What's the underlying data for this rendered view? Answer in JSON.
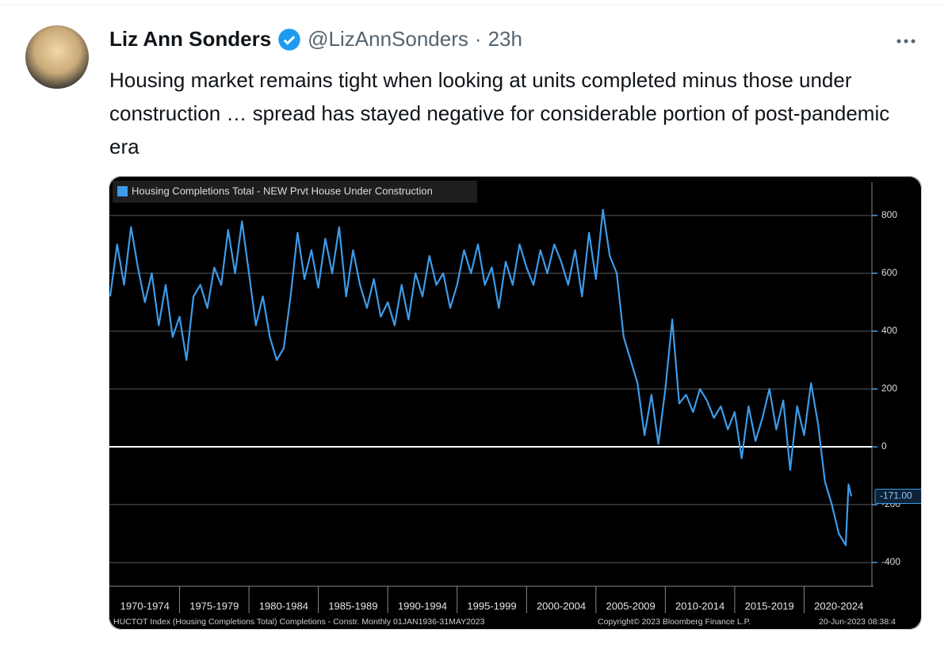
{
  "tweet": {
    "author": "Liz Ann Sonders",
    "handle": "@LizAnnSonders",
    "time": "23h",
    "text": "Housing market remains tight when looking at units completed minus those under construction … spread has stayed negative for considerable portion of post-pandemic era"
  },
  "chart_data": {
    "type": "line",
    "series": [
      {
        "name": "Housing Completions Total - NEW Prvt House Under Construction",
        "color": "#3d9be9",
        "x": [
          1970,
          1970.5,
          1971,
          1971.5,
          1972,
          1972.5,
          1973,
          1973.5,
          1974,
          1974.5,
          1975,
          1975.5,
          1976,
          1976.5,
          1977,
          1977.5,
          1978,
          1978.5,
          1979,
          1979.5,
          1980,
          1980.5,
          1981,
          1981.5,
          1982,
          1982.5,
          1983,
          1983.5,
          1984,
          1984.5,
          1985,
          1985.5,
          1986,
          1986.5,
          1987,
          1987.5,
          1988,
          1988.5,
          1989,
          1989.5,
          1990,
          1990.5,
          1991,
          1991.5,
          1992,
          1992.5,
          1993,
          1993.5,
          1994,
          1994.5,
          1995,
          1995.5,
          1996,
          1996.5,
          1997,
          1997.5,
          1998,
          1998.5,
          1999,
          1999.5,
          2000,
          2000.5,
          2001,
          2001.5,
          2002,
          2002.5,
          2003,
          2003.5,
          2004,
          2004.5,
          2005,
          2005.5,
          2006,
          2006.5,
          2007,
          2007.5,
          2008,
          2008.5,
          2009,
          2009.5,
          2010,
          2010.5,
          2011,
          2011.5,
          2012,
          2012.5,
          2013,
          2013.5,
          2014,
          2014.5,
          2015,
          2015.5,
          2016,
          2016.5,
          2017,
          2017.5,
          2018,
          2018.5,
          2019,
          2019.5,
          2020,
          2020.5,
          2021,
          2021.5,
          2022,
          2022.5,
          2023,
          2023.2,
          2023.4
        ],
        "values": [
          520,
          700,
          560,
          760,
          620,
          500,
          600,
          420,
          560,
          380,
          450,
          300,
          520,
          560,
          480,
          620,
          560,
          750,
          600,
          780,
          600,
          420,
          520,
          380,
          300,
          340,
          520,
          740,
          580,
          680,
          550,
          720,
          600,
          760,
          520,
          680,
          560,
          480,
          580,
          450,
          500,
          420,
          560,
          440,
          600,
          520,
          660,
          560,
          600,
          480,
          560,
          680,
          600,
          700,
          560,
          620,
          480,
          640,
          560,
          700,
          620,
          560,
          680,
          600,
          700,
          640,
          560,
          680,
          520,
          740,
          580,
          820,
          660,
          600,
          380,
          300,
          220,
          40,
          180,
          10,
          200,
          440,
          150,
          180,
          120,
          200,
          160,
          100,
          140,
          60,
          120,
          -40,
          140,
          20,
          100,
          200,
          60,
          160,
          -80,
          140,
          40,
          220,
          80,
          -120,
          -200,
          -300,
          -340,
          -130,
          -171
        ]
      }
    ],
    "last_value": {
      "value": -171,
      "label": "-171.00"
    },
    "xlim": [
      1970,
      2025
    ],
    "xticks": [
      {
        "value": 1970,
        "label": "1970-1974"
      },
      {
        "value": 1975,
        "label": "1975-1979"
      },
      {
        "value": 1980,
        "label": "1980-1984"
      },
      {
        "value": 1985,
        "label": "1985-1989"
      },
      {
        "value": 1990,
        "label": "1990-1994"
      },
      {
        "value": 1995,
        "label": "1995-1999"
      },
      {
        "value": 2000,
        "label": "2000-2004"
      },
      {
        "value": 2005,
        "label": "2005-2009"
      },
      {
        "value": 2010,
        "label": "2010-2014"
      },
      {
        "value": 2015,
        "label": "2015-2019"
      },
      {
        "value": 2020,
        "label": "2020-2024"
      }
    ],
    "ylim": [
      -482,
      915
    ],
    "yticks": [
      800,
      600,
      400,
      200,
      0,
      -200,
      -400
    ],
    "grid": true,
    "zero_line": true,
    "footer": "HUCTOT Index (Housing Completions Total) Completions - Constr.  Monthly 01JAN1936-31MAY2023",
    "copyright": "Copyright© 2023 Bloomberg Finance L.P.",
    "timestamp": "20-Jun-2023 08:38:4"
  }
}
